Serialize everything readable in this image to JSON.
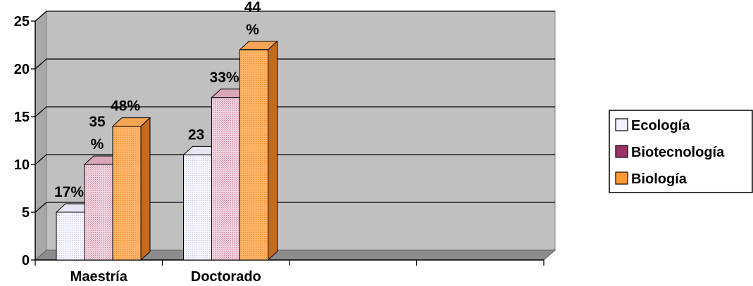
{
  "chart_data": {
    "type": "bar",
    "categories": [
      "Maestría",
      "Doctorado"
    ],
    "series": [
      {
        "name": "Ecología",
        "values": [
          5,
          11
        ],
        "labels": [
          "17%",
          "23"
        ],
        "color": "#f0f0ff"
      },
      {
        "name": "Biotecnología",
        "values": [
          10,
          17
        ],
        "labels": [
          "35\n%",
          "33%"
        ],
        "color": "#f0c8d6"
      },
      {
        "name": "Biología",
        "values": [
          14,
          22
        ],
        "labels": [
          "48%",
          "44\n%"
        ],
        "color": "#ffb266"
      }
    ],
    "legend_swatch_colors": [
      "#f0f0ff",
      "#993366",
      "#ff9933"
    ],
    "y_ticks": [
      "0",
      "5",
      "10",
      "15",
      "20",
      "25"
    ],
    "ylim": [
      0,
      25
    ],
    "grid": true,
    "legend_position": "right",
    "wall_color": "#c0c0c0"
  }
}
